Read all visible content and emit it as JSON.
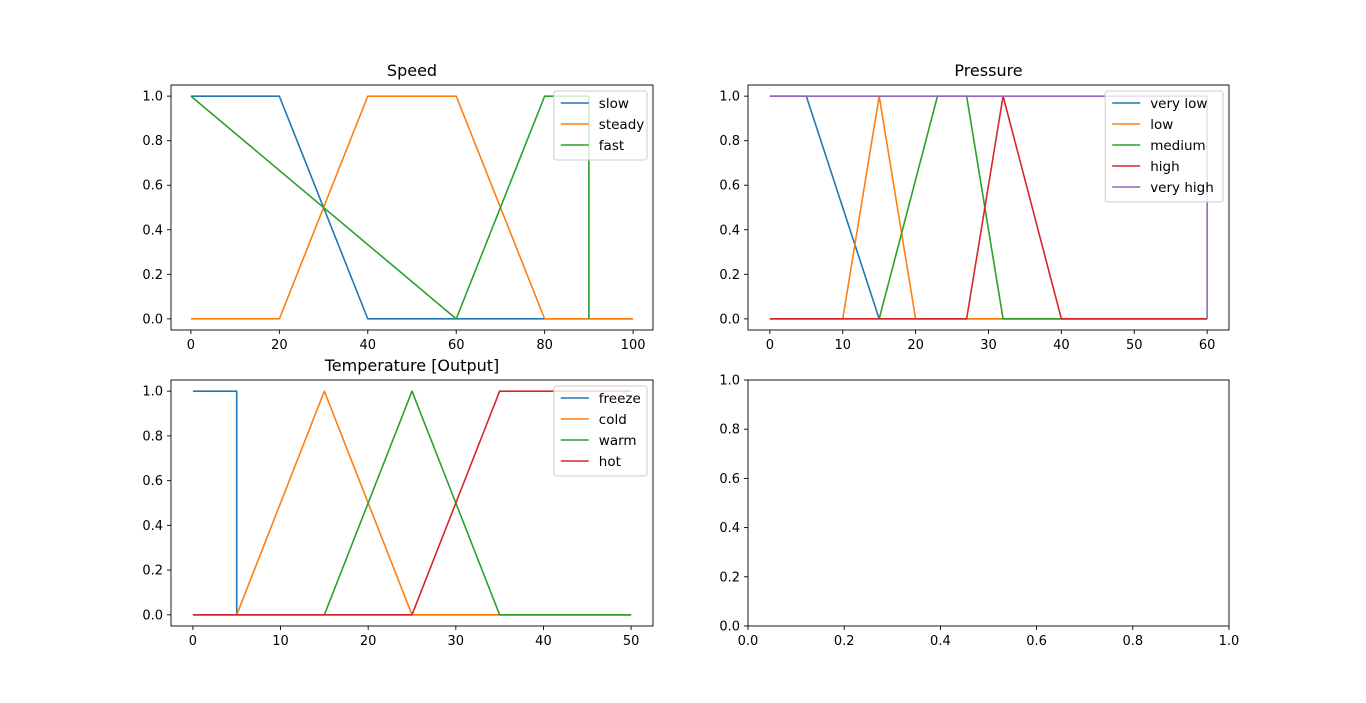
{
  "chart_data": [
    {
      "type": "line",
      "title": "Speed",
      "xlim": [
        -4.5,
        104.5
      ],
      "ylim": [
        -0.05,
        1.05
      ],
      "xticks": [
        0,
        20,
        40,
        60,
        80,
        100
      ],
      "yticks": [
        0.0,
        0.2,
        0.4,
        0.6,
        0.8,
        1.0
      ],
      "legend": "top-right",
      "series": [
        {
          "name": "slow",
          "color": "#1f77b4",
          "x": [
            0,
            20,
            40,
            100
          ],
          "y": [
            1,
            1,
            0,
            0
          ]
        },
        {
          "name": "steady",
          "color": "#ff7f0e",
          "x": [
            0,
            20,
            40,
            60,
            80,
            100
          ],
          "y": [
            0,
            0,
            1,
            1,
            0,
            0
          ]
        },
        {
          "name": "fast",
          "color": "#2ca02c",
          "x": [
            0,
            60,
            80,
            90,
            90
          ],
          "y": [
            1,
            0,
            1,
            1,
            0
          ]
        }
      ]
    },
    {
      "type": "line",
      "title": "Pressure",
      "xlim": [
        -3,
        63
      ],
      "ylim": [
        -0.05,
        1.05
      ],
      "xticks": [
        0,
        10,
        20,
        30,
        40,
        50,
        60
      ],
      "yticks": [
        0.0,
        0.2,
        0.4,
        0.6,
        0.8,
        1.0
      ],
      "legend": "top-right",
      "series": [
        {
          "name": "very low",
          "color": "#1f77b4",
          "x": [
            0,
            5,
            15,
            60
          ],
          "y": [
            1,
            1,
            0,
            0
          ]
        },
        {
          "name": "low",
          "color": "#ff7f0e",
          "x": [
            0,
            10,
            15,
            20,
            60
          ],
          "y": [
            0,
            0,
            1,
            0,
            0
          ]
        },
        {
          "name": "medium",
          "color": "#2ca02c",
          "x": [
            0,
            15,
            23,
            27,
            32,
            60
          ],
          "y": [
            0,
            0,
            1,
            1,
            0,
            0
          ]
        },
        {
          "name": "high",
          "color": "#d62728",
          "x": [
            0,
            27,
            32,
            40,
            60
          ],
          "y": [
            0,
            0,
            1,
            0,
            0
          ]
        },
        {
          "name": "very high",
          "color": "#9467bd",
          "x": [
            0,
            37,
            40,
            60,
            60
          ],
          "y": [
            1,
            1,
            1,
            1,
            0
          ]
        }
      ]
    },
    {
      "type": "line",
      "title": "Temperature [Output]",
      "xlim": [
        -2.5,
        52.5
      ],
      "ylim": [
        -0.05,
        1.05
      ],
      "xticks": [
        0,
        10,
        20,
        30,
        40,
        50
      ],
      "yticks": [
        0.0,
        0.2,
        0.4,
        0.6,
        0.8,
        1.0
      ],
      "legend": "top-right",
      "series": [
        {
          "name": "freeze",
          "color": "#1f77b4",
          "x": [
            0,
            5,
            5,
            15,
            50
          ],
          "y": [
            1,
            1,
            0,
            0,
            0
          ]
        },
        {
          "name": "cold",
          "color": "#ff7f0e",
          "x": [
            0,
            5,
            15,
            25,
            50
          ],
          "y": [
            0,
            0,
            1,
            0,
            0
          ]
        },
        {
          "name": "warm",
          "color": "#2ca02c",
          "x": [
            0,
            15,
            25,
            35,
            50
          ],
          "y": [
            0,
            0,
            1,
            0,
            0
          ]
        },
        {
          "name": "hot",
          "color": "#d62728",
          "x": [
            0,
            25,
            35,
            50
          ],
          "y": [
            0,
            0,
            1,
            1
          ]
        }
      ]
    },
    {
      "type": "line",
      "title": "",
      "xlim": [
        0,
        1
      ],
      "ylim": [
        0,
        1
      ],
      "xticks": [
        0.0,
        0.2,
        0.4,
        0.6,
        0.8,
        1.0
      ],
      "yticks": [
        0.0,
        0.2,
        0.4,
        0.6,
        0.8,
        1.0
      ],
      "series": []
    }
  ]
}
